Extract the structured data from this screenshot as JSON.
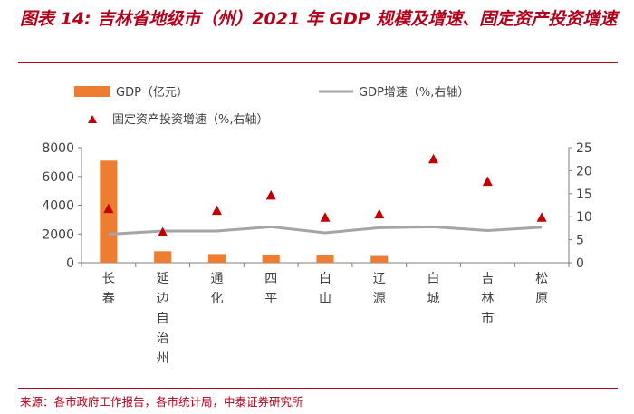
{
  "header": {
    "title": "图表 14:  吉林省地级市（州）2021 年 GDP 规模及增速、固定资产投资增速"
  },
  "footer": {
    "source": "来源：各市政府工作报告，各市统计局，中泰证券研究所"
  },
  "colors": {
    "title": "#b3001b",
    "bar": "#ed7d31",
    "line": "#a5a5a5",
    "marker": "#c00000",
    "axis": "#7f7f7f",
    "text": "#404040"
  },
  "chart_data": {
    "type": "bar",
    "categories": [
      "长春",
      "延边自治州",
      "通化",
      "四平",
      "白山",
      "辽源",
      "白城",
      "吉林市",
      "松原"
    ],
    "series": [
      {
        "name": "GDP（亿元）",
        "type": "bar",
        "axis": "left",
        "values": [
          7100,
          800,
          600,
          550,
          530,
          470,
          null,
          null,
          null
        ]
      },
      {
        "name": "GDP增速（%,右轴）",
        "type": "line",
        "axis": "right",
        "values": [
          6.2,
          6.9,
          6.9,
          7.8,
          6.5,
          7.6,
          7.8,
          7.0,
          7.7
        ]
      },
      {
        "name": "固定资产投资增速（%,右轴）",
        "type": "scatter",
        "marker": "triangle",
        "axis": "right",
        "values": [
          11.7,
          6.6,
          11.3,
          14.6,
          9.8,
          10.5,
          22.5,
          17.6,
          9.8
        ]
      }
    ],
    "y_left": {
      "min": 0,
      "max": 8000,
      "ticks": [
        0,
        2000,
        4000,
        6000,
        8000
      ]
    },
    "y_right": {
      "min": 0,
      "max": 25,
      "ticks": [
        0,
        5,
        10,
        15,
        20,
        25
      ]
    },
    "legend": {
      "gdp": "GDP（亿元）",
      "growth": "GDP增速（%,右轴）",
      "investment": "固定资产投资增速（%,右轴）"
    },
    "legend_position": "top"
  }
}
